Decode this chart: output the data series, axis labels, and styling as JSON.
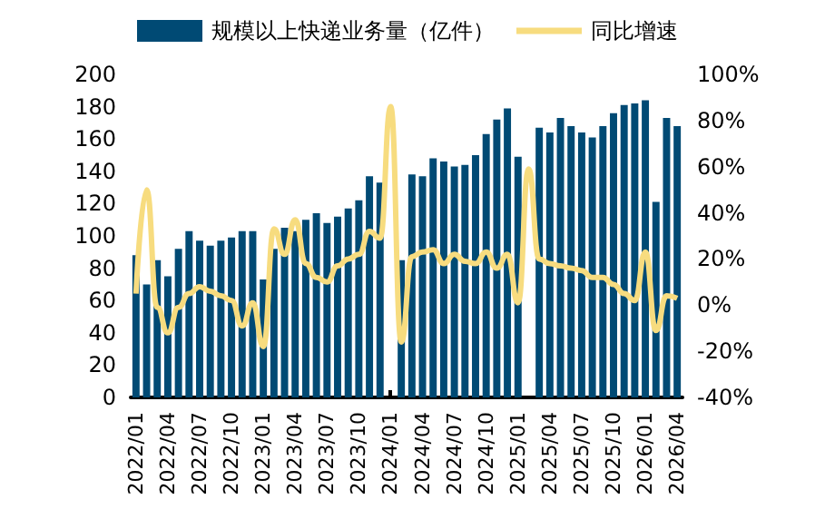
{
  "chart_data": {
    "type": "bar",
    "categories": [
      "2022/01",
      null,
      null,
      "2022/04",
      null,
      null,
      "2022/07",
      null,
      null,
      "2022/10",
      null,
      null,
      "2023/01",
      null,
      null,
      "2023/04",
      null,
      null,
      "2023/07",
      null,
      null,
      "2023/10",
      null,
      null,
      "2024/01",
      null,
      null,
      "2024/04",
      null,
      null,
      "2024/07",
      null,
      null,
      "2024/10",
      null,
      null,
      "2025/01",
      null,
      null,
      "2025/04",
      null,
      null,
      "2025/07",
      null,
      null,
      "2025/10",
      null,
      null,
      "2026/01",
      null,
      null,
      "2026/04"
    ],
    "series": [
      {
        "name": "规模以上快递业务量（亿件）",
        "color": "#004a74",
        "values": [
          88,
          70,
          85,
          75,
          92,
          103,
          97,
          94,
          97,
          99,
          103,
          103,
          73,
          92,
          105,
          103,
          110,
          114,
          108,
          112,
          117,
          122,
          137,
          133,
          null,
          85,
          138,
          137,
          148,
          146,
          143,
          144,
          150,
          163,
          172,
          179,
          149,
          null,
          167,
          164,
          173,
          168,
          164,
          161,
          168,
          176,
          181,
          182,
          184,
          121,
          173,
          168
        ]
      },
      {
        "name": "同比增速",
        "type": "line",
        "axis": "y2",
        "color": "#f7dc7f",
        "values": [
          5,
          50,
          -1,
          -12,
          -1,
          5,
          8,
          6,
          4,
          2,
          -9,
          1,
          -18,
          33,
          22,
          37,
          18,
          12,
          10,
          17,
          20,
          22,
          32,
          29,
          86,
          -16,
          21,
          23,
          24,
          18,
          22,
          19,
          18,
          23,
          16,
          22,
          1,
          59,
          20,
          18,
          17,
          16,
          15,
          12,
          12,
          9,
          5,
          2,
          23,
          -11,
          4,
          3
        ]
      }
    ],
    "ylim": [
      0,
      200
    ],
    "yticks": [
      0,
      20,
      40,
      60,
      80,
      100,
      120,
      140,
      160,
      180,
      200
    ],
    "y2lim": [
      -40,
      100
    ],
    "y2ticks": [
      {
        "value": -40,
        "label": "-40%"
      },
      {
        "value": -20,
        "label": "-20%"
      },
      {
        "value": 0,
        "label": "0%"
      },
      {
        "value": 20,
        "label": "20%"
      },
      {
        "value": 40,
        "label": "40%"
      },
      {
        "value": 60,
        "label": "60%"
      },
      {
        "value": 80,
        "label": "80%"
      },
      {
        "value": 100,
        "label": "100%"
      }
    ],
    "grid": false,
    "legend": "top",
    "marker": "none",
    "line_style": "solid"
  }
}
